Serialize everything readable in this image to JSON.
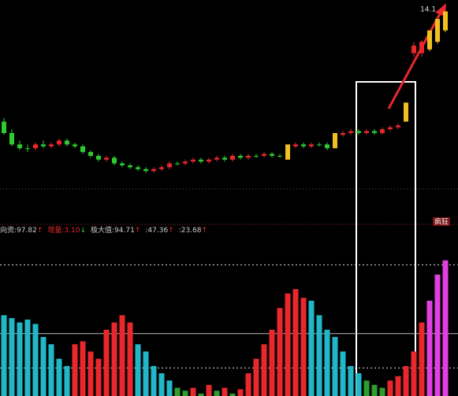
{
  "chart_data": [
    {
      "type": "candlestick",
      "annotation": "14.1",
      "ylim": [
        8.6,
        14.4
      ],
      "open": [
        11.2,
        10.9,
        10.6,
        10.5,
        10.5,
        10.6,
        10.55,
        10.6,
        10.7,
        10.6,
        10.55,
        10.4,
        10.3,
        10.2,
        10.25,
        10.1,
        10.05,
        10.0,
        9.95,
        9.9,
        9.95,
        10.0,
        10.1,
        10.1,
        10.15,
        10.2,
        10.15,
        10.2,
        10.25,
        10.2,
        10.3,
        10.25,
        10.3,
        10.3,
        10.35,
        10.3,
        10.2,
        10.55,
        10.6,
        10.55,
        10.6,
        10.6,
        10.5,
        10.85,
        10.9,
        10.95,
        10.9,
        10.95,
        10.9,
        11.0,
        11.05,
        11.2,
        13.0,
        13.0,
        13.1,
        13.3,
        13.6
      ],
      "close": [
        10.9,
        10.6,
        10.5,
        10.5,
        10.6,
        10.55,
        10.6,
        10.7,
        10.6,
        10.55,
        10.4,
        10.3,
        10.2,
        10.25,
        10.1,
        10.05,
        10.0,
        9.95,
        9.9,
        9.95,
        10.0,
        10.1,
        10.1,
        10.15,
        10.2,
        10.15,
        10.2,
        10.25,
        10.2,
        10.3,
        10.25,
        10.3,
        10.3,
        10.35,
        10.3,
        10.3,
        10.6,
        10.6,
        10.55,
        10.6,
        10.6,
        10.5,
        10.9,
        10.9,
        10.95,
        10.9,
        10.95,
        10.9,
        11.0,
        11.05,
        11.1,
        11.7,
        13.2,
        13.3,
        13.6,
        13.9,
        14.1
      ],
      "high": [
        11.3,
        11.0,
        10.7,
        10.6,
        10.65,
        10.7,
        10.65,
        10.75,
        10.75,
        10.65,
        10.6,
        10.45,
        10.35,
        10.3,
        10.3,
        10.15,
        10.1,
        10.05,
        10.0,
        10.0,
        10.05,
        10.15,
        10.15,
        10.2,
        10.25,
        10.25,
        10.25,
        10.3,
        10.3,
        10.35,
        10.35,
        10.35,
        10.35,
        10.4,
        10.4,
        10.35,
        10.6,
        10.65,
        10.65,
        10.65,
        10.65,
        10.65,
        10.9,
        10.95,
        11.0,
        11.0,
        11.0,
        11.0,
        11.05,
        11.1,
        11.15,
        11.7,
        13.3,
        13.35,
        13.6,
        13.9,
        14.1
      ],
      "low": [
        10.85,
        10.55,
        10.45,
        10.4,
        10.45,
        10.5,
        10.5,
        10.55,
        10.55,
        10.5,
        10.35,
        10.25,
        10.15,
        10.15,
        10.05,
        10.0,
        9.95,
        9.9,
        9.85,
        9.85,
        9.9,
        9.95,
        10.05,
        10.05,
        10.1,
        10.1,
        10.1,
        10.15,
        10.15,
        10.15,
        10.2,
        10.2,
        10.25,
        10.25,
        10.25,
        10.25,
        10.2,
        10.5,
        10.5,
        10.5,
        10.55,
        10.45,
        10.5,
        10.8,
        10.85,
        10.85,
        10.85,
        10.85,
        10.85,
        10.95,
        11.0,
        11.2,
        12.9,
        12.9,
        13.05,
        13.25,
        13.55
      ],
      "colors": [
        "#2ecc2e",
        "#2ecc2e",
        "#2ecc2e",
        "#2ecc2e",
        "#e8282c",
        "#2ecc2e",
        "#e8282c",
        "#e8282c",
        "#2ecc2e",
        "#2ecc2e",
        "#2ecc2e",
        "#2ecc2e",
        "#2ecc2e",
        "#e8282c",
        "#2ecc2e",
        "#2ecc2e",
        "#2ecc2e",
        "#2ecc2e",
        "#2ecc2e",
        "#e8282c",
        "#e8282c",
        "#e8282c",
        "#2ecc2e",
        "#e8282c",
        "#e8282c",
        "#2ecc2e",
        "#e8282c",
        "#e8282c",
        "#2ecc2e",
        "#e8282c",
        "#2ecc2e",
        "#e8282c",
        "#2ecc2e",
        "#e8282c",
        "#2ecc2e",
        "#2ecc2e",
        "#f0c020",
        "#e8282c",
        "#2ecc2e",
        "#e8282c",
        "#2ecc2e",
        "#2ecc2e",
        "#f0c020",
        "#e8282c",
        "#e8282c",
        "#2ecc2e",
        "#e8282c",
        "#2ecc2e",
        "#e8282c",
        "#e8282c",
        "#e8282c",
        "#f0c020",
        "#e8282c",
        "#e8282c",
        "#f0c020",
        "#f0c020",
        "#f0c020"
      ]
    },
    {
      "type": "bar",
      "header": [
        {
          "label": "向资:",
          "value": "97.82",
          "arrow": "↑"
        },
        {
          "label": "增量:",
          "value": "3.10",
          "arrow": "↓"
        },
        {
          "label": "极大值:",
          "value": "94.71",
          "arrow": "↑"
        },
        {
          "label": ":",
          "value": "47.36",
          "arrow": "↑"
        },
        {
          "label": ":",
          "value": "23.68",
          "arrow": "↑"
        }
      ],
      "badge": "疯狂",
      "levels": [
        94.71,
        47.36,
        23.68
      ],
      "ylim": [
        0,
        115
      ],
      "values": [
        60,
        58,
        55,
        57,
        54,
        45,
        40,
        30,
        25,
        40,
        42,
        35,
        30,
        50,
        55,
        60,
        55,
        40,
        35,
        25,
        20,
        15,
        10,
        8,
        10,
        6,
        12,
        8,
        10,
        6,
        9,
        20,
        30,
        40,
        50,
        65,
        75,
        78,
        72,
        70,
        60,
        50,
        45,
        35,
        25,
        20,
        15,
        12,
        10,
        15,
        18,
        25,
        35,
        55,
        70,
        88,
        97.82
      ],
      "colors": [
        "#22b7c8",
        "#22b7c8",
        "#22b7c8",
        "#22b7c8",
        "#22b7c8",
        "#22b7c8",
        "#22b7c8",
        "#22b7c8",
        "#22b7c8",
        "#e8282c",
        "#e8282c",
        "#e8282c",
        "#e8282c",
        "#e8282c",
        "#e8282c",
        "#e8282c",
        "#e8282c",
        "#22b7c8",
        "#22b7c8",
        "#22b7c8",
        "#22b7c8",
        "#22b7c8",
        "#2e9e2e",
        "#2e9e2e",
        "#e8282c",
        "#2e9e2e",
        "#e8282c",
        "#2e9e2e",
        "#e8282c",
        "#2e9e2e",
        "#e8282c",
        "#e8282c",
        "#e8282c",
        "#e8282c",
        "#e8282c",
        "#e8282c",
        "#e8282c",
        "#e8282c",
        "#e8282c",
        "#22b7c8",
        "#22b7c8",
        "#22b7c8",
        "#22b7c8",
        "#22b7c8",
        "#22b7c8",
        "#22b7c8",
        "#2e9e2e",
        "#2e9e2e",
        "#2e9e2e",
        "#e8282c",
        "#e8282c",
        "#e8282c",
        "#e8282c",
        "#e8282c",
        "#e040e0",
        "#e040e0",
        "#e040e0"
      ]
    }
  ]
}
